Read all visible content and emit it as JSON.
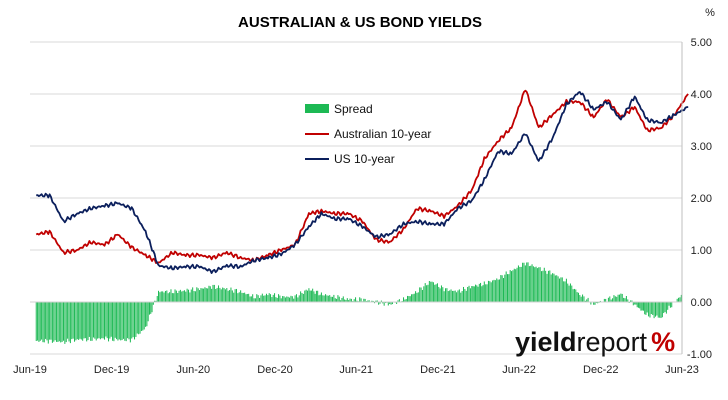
{
  "chart_data": {
    "type": "line",
    "title": "AUSTRALIAN & US BOND YIELDS",
    "ylabel": "%",
    "xlabel": "",
    "ylim": [
      -1.0,
      5.0
    ],
    "y_ticks": [
      "5.00",
      "4.00",
      "3.00",
      "2.00",
      "1.00",
      "0.00",
      "-1.00"
    ],
    "x_ticks": [
      "Jun-19",
      "Dec-19",
      "Jun-20",
      "Dec-20",
      "Jun-21",
      "Dec-21",
      "Jun-22",
      "Dec-22",
      "Jun-23"
    ],
    "grid": true,
    "legend_position": "center",
    "series": [
      {
        "name": "Spread",
        "type": "bar",
        "color": "#1DB954",
        "points": [
          [
            "2019-06",
            -0.75
          ],
          [
            "2019-07",
            -0.75
          ],
          [
            "2019-08",
            -0.77
          ],
          [
            "2019-09",
            -0.72
          ],
          [
            "2019-10",
            -0.72
          ],
          [
            "2019-11",
            -0.7
          ],
          [
            "2019-12",
            -0.73
          ],
          [
            "2020-01",
            -0.73
          ],
          [
            "2020-02",
            -0.5
          ],
          [
            "2020-03",
            0.2
          ],
          [
            "2020-04",
            0.2
          ],
          [
            "2020-05",
            0.22
          ],
          [
            "2020-06",
            0.25
          ],
          [
            "2020-07",
            0.3
          ],
          [
            "2020-08",
            0.25
          ],
          [
            "2020-09",
            0.2
          ],
          [
            "2020-10",
            0.1
          ],
          [
            "2020-11",
            0.15
          ],
          [
            "2020-12",
            0.1
          ],
          [
            "2021-01",
            0.1
          ],
          [
            "2021-02",
            0.25
          ],
          [
            "2021-03",
            0.15
          ],
          [
            "2021-04",
            0.1
          ],
          [
            "2021-05",
            0.05
          ],
          [
            "2021-06",
            0.05
          ],
          [
            "2021-07",
            0.0
          ],
          [
            "2021-08",
            -0.05
          ],
          [
            "2021-09",
            0.05
          ],
          [
            "2021-10",
            0.2
          ],
          [
            "2021-11",
            0.4
          ],
          [
            "2021-12",
            0.25
          ],
          [
            "2022-01",
            0.2
          ],
          [
            "2022-02",
            0.3
          ],
          [
            "2022-03",
            0.35
          ],
          [
            "2022-04",
            0.45
          ],
          [
            "2022-05",
            0.6
          ],
          [
            "2022-06",
            0.75
          ],
          [
            "2022-07",
            0.65
          ],
          [
            "2022-08",
            0.55
          ],
          [
            "2022-09",
            0.4
          ],
          [
            "2022-10",
            0.15
          ],
          [
            "2022-11",
            -0.05
          ],
          [
            "2022-12",
            0.05
          ],
          [
            "2023-01",
            0.15
          ],
          [
            "2023-02",
            -0.05
          ],
          [
            "2023-03",
            -0.25
          ],
          [
            "2023-04",
            -0.3
          ],
          [
            "2023-05",
            0.0
          ],
          [
            "2023-06",
            0.25
          ]
        ]
      },
      {
        "name": "Australian 10-year",
        "type": "line",
        "color": "#C00000",
        "points": [
          [
            "2019-06",
            1.3
          ],
          [
            "2019-07",
            1.35
          ],
          [
            "2019-08",
            0.95
          ],
          [
            "2019-09",
            1.0
          ],
          [
            "2019-10",
            1.15
          ],
          [
            "2019-11",
            1.1
          ],
          [
            "2019-12",
            1.3
          ],
          [
            "2020-01",
            1.05
          ],
          [
            "2020-02",
            0.9
          ],
          [
            "2020-03",
            0.75
          ],
          [
            "2020-04",
            0.95
          ],
          [
            "2020-05",
            0.9
          ],
          [
            "2020-06",
            0.9
          ],
          [
            "2020-07",
            0.85
          ],
          [
            "2020-08",
            0.95
          ],
          [
            "2020-09",
            0.85
          ],
          [
            "2020-10",
            0.8
          ],
          [
            "2020-11",
            0.9
          ],
          [
            "2020-12",
            1.0
          ],
          [
            "2021-01",
            1.1
          ],
          [
            "2021-02",
            1.7
          ],
          [
            "2021-03",
            1.75
          ],
          [
            "2021-04",
            1.7
          ],
          [
            "2021-05",
            1.7
          ],
          [
            "2021-06",
            1.55
          ],
          [
            "2021-07",
            1.2
          ],
          [
            "2021-08",
            1.15
          ],
          [
            "2021-09",
            1.4
          ],
          [
            "2021-10",
            1.8
          ],
          [
            "2021-11",
            1.75
          ],
          [
            "2021-12",
            1.65
          ],
          [
            "2022-01",
            1.85
          ],
          [
            "2022-02",
            2.15
          ],
          [
            "2022-03",
            2.75
          ],
          [
            "2022-04",
            3.1
          ],
          [
            "2022-05",
            3.35
          ],
          [
            "2022-06",
            4.1
          ],
          [
            "2022-07",
            3.35
          ],
          [
            "2022-08",
            3.6
          ],
          [
            "2022-09",
            3.85
          ],
          [
            "2022-10",
            3.85
          ],
          [
            "2022-11",
            3.55
          ],
          [
            "2022-12",
            3.9
          ],
          [
            "2023-01",
            3.55
          ],
          [
            "2023-02",
            3.75
          ],
          [
            "2023-03",
            3.3
          ],
          [
            "2023-04",
            3.35
          ],
          [
            "2023-05",
            3.6
          ],
          [
            "2023-06",
            4.0
          ]
        ]
      },
      {
        "name": "US 10-year",
        "type": "line",
        "color": "#0B1F5C",
        "points": [
          [
            "2019-06",
            2.05
          ],
          [
            "2019-07",
            2.05
          ],
          [
            "2019-08",
            1.55
          ],
          [
            "2019-09",
            1.7
          ],
          [
            "2019-10",
            1.8
          ],
          [
            "2019-11",
            1.85
          ],
          [
            "2019-12",
            1.9
          ],
          [
            "2020-01",
            1.8
          ],
          [
            "2020-02",
            1.35
          ],
          [
            "2020-03",
            0.7
          ],
          [
            "2020-04",
            0.65
          ],
          [
            "2020-05",
            0.68
          ],
          [
            "2020-06",
            0.68
          ],
          [
            "2020-07",
            0.58
          ],
          [
            "2020-08",
            0.7
          ],
          [
            "2020-09",
            0.68
          ],
          [
            "2020-10",
            0.8
          ],
          [
            "2020-11",
            0.85
          ],
          [
            "2020-12",
            0.92
          ],
          [
            "2021-01",
            1.1
          ],
          [
            "2021-02",
            1.45
          ],
          [
            "2021-03",
            1.7
          ],
          [
            "2021-04",
            1.6
          ],
          [
            "2021-05",
            1.6
          ],
          [
            "2021-06",
            1.45
          ],
          [
            "2021-07",
            1.25
          ],
          [
            "2021-08",
            1.3
          ],
          [
            "2021-09",
            1.5
          ],
          [
            "2021-10",
            1.55
          ],
          [
            "2021-11",
            1.5
          ],
          [
            "2021-12",
            1.5
          ],
          [
            "2022-01",
            1.8
          ],
          [
            "2022-02",
            1.95
          ],
          [
            "2022-03",
            2.35
          ],
          [
            "2022-04",
            2.9
          ],
          [
            "2022-05",
            2.85
          ],
          [
            "2022-06",
            3.25
          ],
          [
            "2022-07",
            2.7
          ],
          [
            "2022-08",
            3.15
          ],
          [
            "2022-09",
            3.8
          ],
          [
            "2022-10",
            4.05
          ],
          [
            "2022-11",
            3.7
          ],
          [
            "2022-12",
            3.85
          ],
          [
            "2023-01",
            3.5
          ],
          [
            "2023-02",
            3.95
          ],
          [
            "2023-03",
            3.5
          ],
          [
            "2023-04",
            3.45
          ],
          [
            "2023-05",
            3.6
          ],
          [
            "2023-06",
            3.75
          ]
        ]
      }
    ]
  },
  "watermark": {
    "part1": "yield",
    "part2": "report",
    "part3": "%",
    "color_text": "#111111",
    "color_accent": "#C00000"
  }
}
